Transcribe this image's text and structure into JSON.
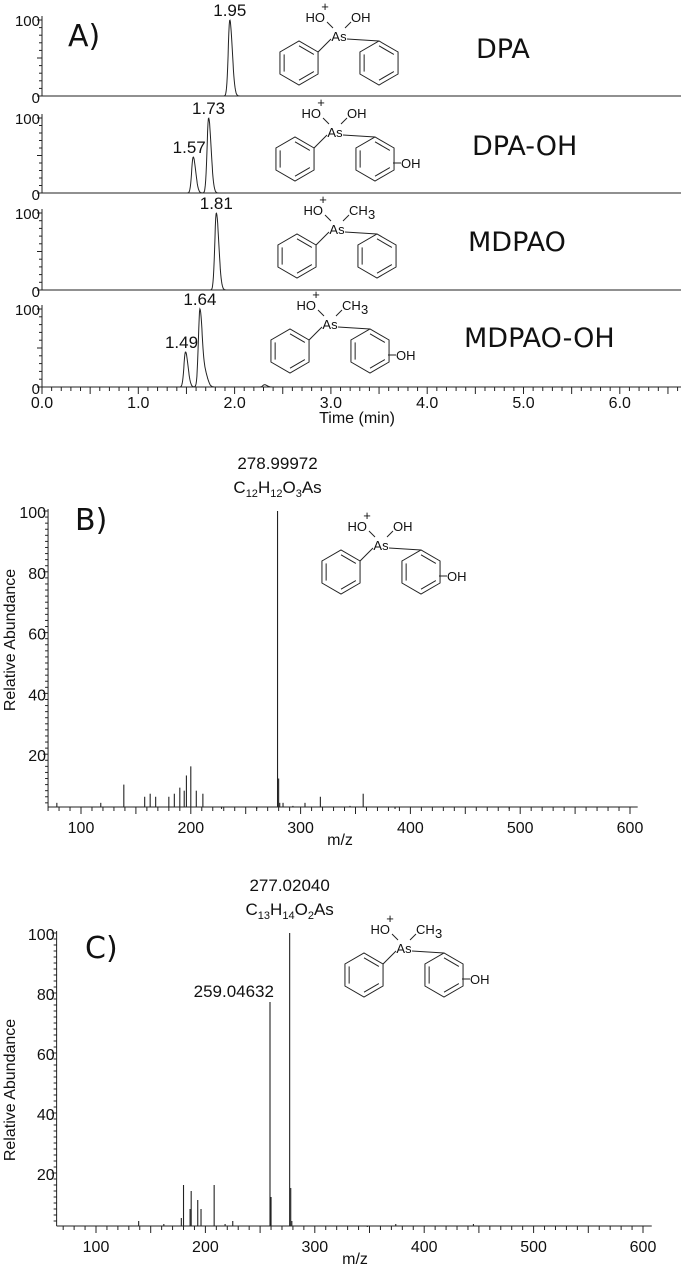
{
  "chart_data": [
    {
      "type": "line",
      "panel_label": "A)",
      "xlabel": "Time (min)",
      "xlim": [
        0,
        6.63
      ],
      "xticks": [
        "0.0",
        "1.0",
        "2.0",
        "3.0",
        "4.0",
        "5.0",
        "6.0"
      ],
      "yticks": [
        "0",
        "100"
      ],
      "ylim": [
        0,
        100
      ],
      "traces": [
        {
          "name": "DPA",
          "peaks": [
            {
              "rt": 1.95,
              "height": 100,
              "label": "1.95"
            }
          ],
          "structure": {
            "left": "HO",
            "charge": "+",
            "right": "CH",
            "right_main": "OH",
            "right_sub": "",
            "center": "As",
            "ring_oh": ""
          }
        },
        {
          "name": "DPA-OH",
          "peaks": [
            {
              "rt": 1.57,
              "height": 48,
              "label": "1.57"
            },
            {
              "rt": 1.73,
              "height": 100,
              "label": "1.73"
            }
          ],
          "structure": {
            "left": "HO",
            "charge": "+",
            "right_main": "OH",
            "right_sub": "",
            "center": "As",
            "ring_oh": "OH"
          }
        },
        {
          "name": "MDPAO",
          "peaks": [
            {
              "rt": 1.81,
              "height": 100,
              "label": "1.81"
            }
          ],
          "structure": {
            "left": "HO",
            "charge": "+",
            "right_main": "CH",
            "right_sub": "3",
            "center": "As",
            "ring_oh": ""
          }
        },
        {
          "name": "MDPAO-OH",
          "peaks": [
            {
              "rt": 1.49,
              "height": 45,
              "label": "1.49"
            },
            {
              "rt": 1.64,
              "height": 100,
              "label": "1.64"
            },
            {
              "rt": 1.7,
              "height": 14,
              "label": ""
            },
            {
              "rt": 2.31,
              "height": 3,
              "label": ""
            }
          ],
          "structure": {
            "left": "HO",
            "charge": "+",
            "right_main": "CH",
            "right_sub": "3",
            "center": "As",
            "ring_oh": "OH"
          }
        }
      ]
    },
    {
      "type": "bar",
      "panel_label": "B)",
      "xlabel": "m/z",
      "ylabel": "Relative Abundance",
      "xlim": [
        70,
        607
      ],
      "ylim": [
        0,
        100
      ],
      "xticks": [
        "100",
        "200",
        "300",
        "400",
        "500",
        "600"
      ],
      "yticks": [
        "20",
        "40",
        "60",
        "80",
        "100"
      ],
      "annotations": [
        {
          "mz": 278.99972,
          "label": "278.99972",
          "formula": [
            {
              "t": "C"
            },
            {
              "t": "12",
              "sub": true
            },
            {
              "t": "H"
            },
            {
              "t": "12",
              "sub": true
            },
            {
              "t": "O"
            },
            {
              "t": "3",
              "sub": true
            },
            {
              "t": "As"
            }
          ]
        }
      ],
      "peaks": [
        [
          278.99972,
          100
        ],
        [
          280,
          12
        ],
        [
          281,
          4
        ],
        [
          139,
          10
        ],
        [
          200,
          16
        ],
        [
          196,
          13
        ],
        [
          194,
          8
        ],
        [
          190,
          9
        ],
        [
          185,
          7
        ],
        [
          180,
          6
        ],
        [
          168,
          6
        ],
        [
          163,
          7
        ],
        [
          158,
          6
        ],
        [
          205,
          8
        ],
        [
          211,
          7
        ],
        [
          78,
          4
        ],
        [
          118,
          4
        ],
        [
          357,
          7
        ],
        [
          318,
          6
        ],
        [
          304,
          4
        ],
        [
          284,
          4
        ],
        [
          293,
          3
        ],
        [
          345,
          3
        ],
        [
          386,
          2
        ],
        [
          490,
          2
        ],
        [
          260,
          2
        ],
        [
          228,
          2
        ]
      ],
      "structure": {
        "left": "HO",
        "charge": "+",
        "right_main": "OH",
        "right_sub": "",
        "center": "As",
        "ring_oh": "OH"
      }
    },
    {
      "type": "bar",
      "panel_label": "C)",
      "xlabel": "m/z",
      "ylabel": "Relative Abundance",
      "xlim": [
        64,
        608
      ],
      "ylim": [
        0,
        100
      ],
      "xticks": [
        "100",
        "200",
        "300",
        "400",
        "500",
        "600"
      ],
      "yticks": [
        "20",
        "40",
        "60",
        "80",
        "100"
      ],
      "annotations": [
        {
          "mz": 277.0204,
          "label": "277.02040",
          "formula": [
            {
              "t": "C"
            },
            {
              "t": "13",
              "sub": true
            },
            {
              "t": "H"
            },
            {
              "t": "14",
              "sub": true
            },
            {
              "t": "O"
            },
            {
              "t": "2",
              "sub": true
            },
            {
              "t": "As"
            }
          ]
        },
        {
          "mz": 259.04632,
          "label": "259.04632",
          "formula": []
        }
      ],
      "peaks": [
        [
          277.0204,
          100
        ],
        [
          259.04632,
          77
        ],
        [
          260,
          12
        ],
        [
          278,
          15
        ],
        [
          279,
          4
        ],
        [
          180,
          16
        ],
        [
          187,
          14
        ],
        [
          193,
          11
        ],
        [
          208,
          16
        ],
        [
          196,
          8
        ],
        [
          186,
          8
        ],
        [
          178,
          5
        ],
        [
          139,
          4
        ],
        [
          162,
          3
        ],
        [
          225,
          4
        ],
        [
          218,
          3
        ],
        [
          374,
          3
        ],
        [
          445,
          3
        ],
        [
          348,
          2
        ]
      ],
      "structure": {
        "left": "HO",
        "charge": "+",
        "right_main": "CH",
        "right_sub": "3",
        "center": "As",
        "ring_oh": "OH"
      }
    }
  ]
}
